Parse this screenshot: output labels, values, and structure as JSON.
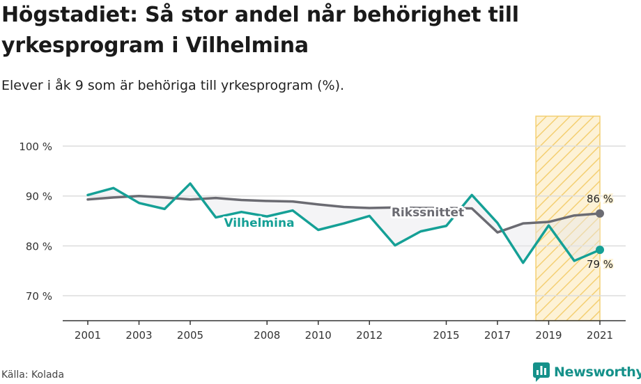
{
  "title": "Högstadiet: Så stor andel når behörighet till yrkesprogram i Vilhelmina",
  "subtitle": "Elever i åk 9 som är behöriga till yrkesprogram (%).",
  "source": "Källa: Kolada",
  "brand": {
    "name": "Newsworthy",
    "color": "#15918a",
    "icon": "newsworthy-chart-logo-icon"
  },
  "chart_data": {
    "type": "line",
    "ylim": [
      65,
      106
    ],
    "xlim": [
      2000,
      2022
    ],
    "y_ticks": [
      70,
      80,
      90,
      100
    ],
    "y_tick_labels": [
      "70 %",
      "80 %",
      "90 %",
      "100 %"
    ],
    "x_ticks": [
      2001,
      2003,
      2005,
      2008,
      2010,
      2012,
      2015,
      2017,
      2019,
      2021
    ],
    "x_tick_labels": [
      "2001",
      "2003",
      "2005",
      "2008",
      "2010",
      "2012",
      "2015",
      "2017",
      "2019",
      "2021"
    ],
    "grid": "horizontal",
    "highlight_range": [
      2018.5,
      2021
    ],
    "series": [
      {
        "name": "Vilhelmina",
        "color": "#15a096",
        "x": [
          2001,
          2002,
          2003,
          2004,
          2005,
          2006,
          2007,
          2008,
          2009,
          2010,
          2011,
          2012,
          2013,
          2014,
          2015,
          2016,
          2017,
          2018,
          2019,
          2020,
          2021
        ],
        "values": [
          90.2,
          91.6,
          88.6,
          87.4,
          92.5,
          85.7,
          86.8,
          85.9,
          87.1,
          83.2,
          84.5,
          86.0,
          80.1,
          82.9,
          84.0,
          90.2,
          84.6,
          76.6,
          84.1,
          77.0,
          79.2
        ],
        "end_label": "79 %"
      },
      {
        "name": "Rikssnittet",
        "color": "#6b6b72",
        "x": [
          2001,
          2002,
          2003,
          2004,
          2005,
          2006,
          2007,
          2008,
          2009,
          2010,
          2011,
          2012,
          2013,
          2014,
          2015,
          2016,
          2017,
          2018,
          2019,
          2020,
          2021
        ],
        "values": [
          89.3,
          89.7,
          90.0,
          89.7,
          89.3,
          89.6,
          89.2,
          89.0,
          88.9,
          88.3,
          87.8,
          87.6,
          87.7,
          87.6,
          87.6,
          87.5,
          82.7,
          84.5,
          84.8,
          86.1,
          86.5
        ],
        "end_label": "86 %"
      }
    ]
  }
}
